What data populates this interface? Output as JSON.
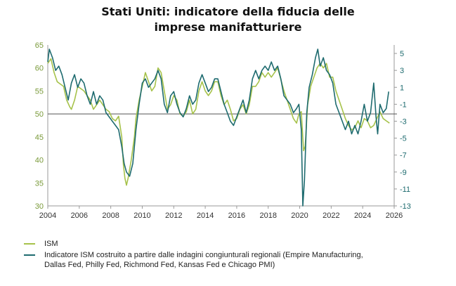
{
  "chart_data": {
    "type": "line",
    "title_line1": "Stati Uniti: indicatore della fiducia delle",
    "title_line2": "imprese manifatturiere",
    "x_ticks": [
      "2004",
      "2006",
      "2008",
      "2010",
      "2012",
      "2014",
      "2016",
      "2018",
      "2020",
      "2022",
      "2024",
      "2026"
    ],
    "xlim": [
      2004,
      2026
    ],
    "y_left": {
      "ticks": [
        30,
        35,
        40,
        45,
        50,
        55,
        60,
        65
      ],
      "lim": [
        30,
        65
      ]
    },
    "y_right": {
      "ticks": [
        -13,
        -11,
        -9,
        -7,
        -5,
        -3,
        -1,
        1,
        3,
        5
      ],
      "lim": [
        -13,
        6
      ]
    },
    "reference_line_left": 50,
    "colors": {
      "ism": "#a6c24a",
      "regional": "#1e6b6f",
      "axis_left": "#7a9a3a",
      "axis_right": "#1e6b6f",
      "reference": "#555555"
    },
    "series": [
      {
        "name": "ISM",
        "axis": "left",
        "points": [
          [
            2004.0,
            61
          ],
          [
            2004.2,
            62
          ],
          [
            2004.4,
            59
          ],
          [
            2004.6,
            57
          ],
          [
            2004.8,
            56.5
          ],
          [
            2005.0,
            56
          ],
          [
            2005.2,
            53
          ],
          [
            2005.4,
            51.5
          ],
          [
            2005.5,
            51
          ],
          [
            2005.7,
            53
          ],
          [
            2005.9,
            56
          ],
          [
            2006.1,
            55.5
          ],
          [
            2006.3,
            55
          ],
          [
            2006.5,
            54
          ],
          [
            2006.7,
            53
          ],
          [
            2006.9,
            51
          ],
          [
            2007.1,
            52
          ],
          [
            2007.3,
            53
          ],
          [
            2007.5,
            52
          ],
          [
            2007.7,
            51
          ],
          [
            2007.9,
            50.5
          ],
          [
            2008.1,
            49
          ],
          [
            2008.3,
            48.5
          ],
          [
            2008.5,
            49.5
          ],
          [
            2008.7,
            45
          ],
          [
            2008.8,
            39
          ],
          [
            2008.9,
            36
          ],
          [
            2009.0,
            34.5
          ],
          [
            2009.1,
            36
          ],
          [
            2009.3,
            40
          ],
          [
            2009.5,
            45
          ],
          [
            2009.6,
            49
          ],
          [
            2009.8,
            53
          ],
          [
            2010.0,
            56
          ],
          [
            2010.2,
            59
          ],
          [
            2010.4,
            57
          ],
          [
            2010.6,
            55
          ],
          [
            2010.8,
            56
          ],
          [
            2011.0,
            60
          ],
          [
            2011.2,
            59
          ],
          [
            2011.4,
            55
          ],
          [
            2011.6,
            51
          ],
          [
            2011.8,
            52
          ],
          [
            2012.0,
            54
          ],
          [
            2012.2,
            53
          ],
          [
            2012.4,
            50
          ],
          [
            2012.6,
            49.5
          ],
          [
            2012.8,
            50.5
          ],
          [
            2013.0,
            53
          ],
          [
            2013.2,
            50
          ],
          [
            2013.4,
            51
          ],
          [
            2013.6,
            55
          ],
          [
            2013.8,
            57
          ],
          [
            2014.0,
            55
          ],
          [
            2014.2,
            54
          ],
          [
            2014.4,
            55
          ],
          [
            2014.6,
            57
          ],
          [
            2014.8,
            57
          ],
          [
            2015.0,
            54
          ],
          [
            2015.2,
            52
          ],
          [
            2015.4,
            53
          ],
          [
            2015.6,
            51
          ],
          [
            2015.8,
            48.5
          ],
          [
            2016.0,
            49
          ],
          [
            2016.2,
            51
          ],
          [
            2016.4,
            52
          ],
          [
            2016.6,
            50
          ],
          [
            2016.8,
            52
          ],
          [
            2017.0,
            56
          ],
          [
            2017.2,
            56
          ],
          [
            2017.4,
            57
          ],
          [
            2017.6,
            59
          ],
          [
            2017.8,
            58
          ],
          [
            2018.0,
            59
          ],
          [
            2018.2,
            58
          ],
          [
            2018.4,
            59
          ],
          [
            2018.6,
            60
          ],
          [
            2018.8,
            57.5
          ],
          [
            2019.0,
            55
          ],
          [
            2019.2,
            53
          ],
          [
            2019.4,
            51
          ],
          [
            2019.6,
            49
          ],
          [
            2019.8,
            48
          ],
          [
            2019.95,
            50
          ],
          [
            2020.1,
            50.5
          ],
          [
            2020.25,
            42
          ],
          [
            2020.35,
            43
          ],
          [
            2020.5,
            52
          ],
          [
            2020.7,
            56
          ],
          [
            2020.9,
            58
          ],
          [
            2021.1,
            60
          ],
          [
            2021.3,
            61
          ],
          [
            2021.5,
            60
          ],
          [
            2021.7,
            61
          ],
          [
            2021.9,
            58
          ],
          [
            2022.1,
            58
          ],
          [
            2022.3,
            55
          ],
          [
            2022.5,
            53
          ],
          [
            2022.7,
            51
          ],
          [
            2022.9,
            49
          ],
          [
            2023.1,
            47.5
          ],
          [
            2023.3,
            46.5
          ],
          [
            2023.5,
            47
          ],
          [
            2023.7,
            48.5
          ],
          [
            2023.9,
            47
          ],
          [
            2024.1,
            49
          ],
          [
            2024.3,
            48.5
          ],
          [
            2024.5,
            47
          ],
          [
            2024.7,
            47.5
          ],
          [
            2024.9,
            49
          ],
          [
            2025.1,
            50.5
          ],
          [
            2025.3,
            49
          ],
          [
            2025.5,
            48.5
          ],
          [
            2025.7,
            48
          ]
        ]
      },
      {
        "name": "Indicatore ISM costruito a partire dalle indagini congiunturali regionali (Empire Manufacturing, Dallas Fed, Philly Fed, Richmond Fed, Kansas Fed e Chicago PMI)",
        "axis": "right",
        "points": [
          [
            2004.0,
            4
          ],
          [
            2004.1,
            5.5
          ],
          [
            2004.3,
            4.5
          ],
          [
            2004.5,
            3
          ],
          [
            2004.7,
            3.5
          ],
          [
            2004.9,
            2.5
          ],
          [
            2005.1,
            1
          ],
          [
            2005.3,
            -0.5
          ],
          [
            2005.5,
            1.5
          ],
          [
            2005.7,
            2.5
          ],
          [
            2005.9,
            1
          ],
          [
            2006.1,
            2
          ],
          [
            2006.3,
            1.5
          ],
          [
            2006.5,
            0
          ],
          [
            2006.7,
            -1
          ],
          [
            2006.9,
            0.5
          ],
          [
            2007.1,
            -1
          ],
          [
            2007.3,
            0
          ],
          [
            2007.5,
            -0.5
          ],
          [
            2007.7,
            -2
          ],
          [
            2007.9,
            -2.5
          ],
          [
            2008.1,
            -3
          ],
          [
            2008.3,
            -3.5
          ],
          [
            2008.5,
            -4
          ],
          [
            2008.7,
            -6
          ],
          [
            2008.85,
            -8
          ],
          [
            2009.0,
            -9
          ],
          [
            2009.2,
            -9.5
          ],
          [
            2009.4,
            -8
          ],
          [
            2009.6,
            -4
          ],
          [
            2009.8,
            -1
          ],
          [
            2010.0,
            1.5
          ],
          [
            2010.2,
            2
          ],
          [
            2010.4,
            1
          ],
          [
            2010.6,
            1.5
          ],
          [
            2010.8,
            2
          ],
          [
            2011.0,
            3
          ],
          [
            2011.2,
            2
          ],
          [
            2011.4,
            -1
          ],
          [
            2011.6,
            -2
          ],
          [
            2011.8,
            0
          ],
          [
            2012.0,
            0.5
          ],
          [
            2012.2,
            -1
          ],
          [
            2012.4,
            -2
          ],
          [
            2012.6,
            -2.5
          ],
          [
            2012.8,
            -1.5
          ],
          [
            2013.0,
            0
          ],
          [
            2013.2,
            -1
          ],
          [
            2013.4,
            -0.5
          ],
          [
            2013.6,
            1.5
          ],
          [
            2013.8,
            2.5
          ],
          [
            2014.0,
            1.5
          ],
          [
            2014.2,
            0.5
          ],
          [
            2014.4,
            1
          ],
          [
            2014.6,
            2
          ],
          [
            2014.8,
            2
          ],
          [
            2015.0,
            0.5
          ],
          [
            2015.2,
            -1
          ],
          [
            2015.4,
            -2
          ],
          [
            2015.6,
            -3
          ],
          [
            2015.8,
            -3.5
          ],
          [
            2016.0,
            -2.5
          ],
          [
            2016.2,
            -1.5
          ],
          [
            2016.4,
            -0.5
          ],
          [
            2016.6,
            -2
          ],
          [
            2016.8,
            -0.5
          ],
          [
            2017.0,
            2
          ],
          [
            2017.2,
            3
          ],
          [
            2017.4,
            2
          ],
          [
            2017.6,
            3
          ],
          [
            2017.8,
            3.5
          ],
          [
            2018.0,
            3
          ],
          [
            2018.2,
            4
          ],
          [
            2018.4,
            3
          ],
          [
            2018.6,
            3.5
          ],
          [
            2018.8,
            2
          ],
          [
            2019.0,
            0
          ],
          [
            2019.2,
            -0.5
          ],
          [
            2019.4,
            -1
          ],
          [
            2019.6,
            -2
          ],
          [
            2019.8,
            -1.5
          ],
          [
            2019.95,
            -1
          ],
          [
            2020.1,
            -4
          ],
          [
            2020.2,
            -13
          ],
          [
            2020.3,
            -10
          ],
          [
            2020.45,
            -2
          ],
          [
            2020.6,
            1
          ],
          [
            2020.8,
            2.5
          ],
          [
            2021.0,
            4.5
          ],
          [
            2021.15,
            5.5
          ],
          [
            2021.3,
            3.5
          ],
          [
            2021.5,
            4.5
          ],
          [
            2021.7,
            3
          ],
          [
            2021.9,
            2.5
          ],
          [
            2022.1,
            1.5
          ],
          [
            2022.3,
            -1
          ],
          [
            2022.5,
            -2
          ],
          [
            2022.7,
            -3
          ],
          [
            2022.9,
            -4
          ],
          [
            2023.1,
            -3
          ],
          [
            2023.3,
            -4.5
          ],
          [
            2023.5,
            -3.5
          ],
          [
            2023.7,
            -4.5
          ],
          [
            2023.9,
            -3
          ],
          [
            2024.1,
            -1
          ],
          [
            2024.3,
            -3
          ],
          [
            2024.5,
            -2
          ],
          [
            2024.7,
            1.5
          ],
          [
            2024.85,
            -2.5
          ],
          [
            2024.95,
            -4.5
          ],
          [
            2025.1,
            -1
          ],
          [
            2025.3,
            -2
          ],
          [
            2025.5,
            -1.5
          ],
          [
            2025.65,
            0.5
          ]
        ]
      }
    ]
  }
}
